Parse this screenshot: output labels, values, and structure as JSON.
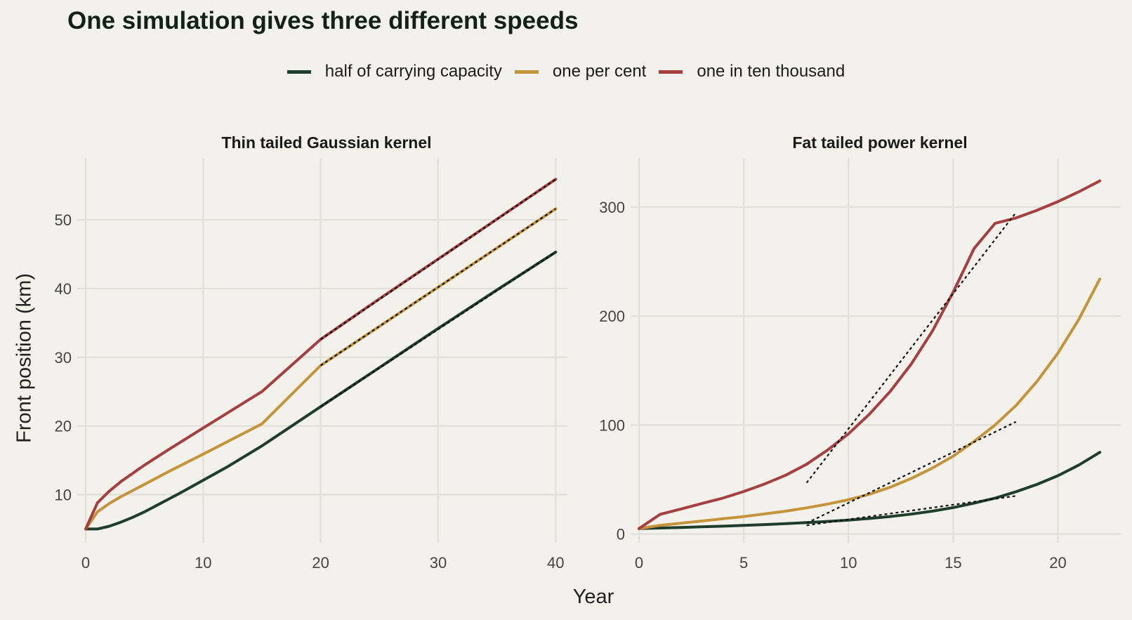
{
  "title": "One simulation gives three different speeds",
  "legend": [
    {
      "label": "half of carrying capacity",
      "color": "#1f3d2b"
    },
    {
      "label": "one per cent",
      "color": "#c5943a"
    },
    {
      "label": "one in ten thousand",
      "color": "#a63f3f"
    }
  ],
  "xlabel": "Year",
  "ylabel": "Front position (km)",
  "colors": {
    "background": "#f2f1eb",
    "grid": "#e0dfd8",
    "fit_line": "#111111"
  },
  "chart_data": [
    {
      "type": "line",
      "title": "Thin tailed Gaussian kernel",
      "xlim": [
        0,
        41
      ],
      "ylim": [
        3,
        59
      ],
      "xticks": [
        0,
        10,
        20,
        30,
        40
      ],
      "yticks": [
        10,
        20,
        30,
        40,
        50
      ],
      "grid": true,
      "series": [
        {
          "name": "half of carrying capacity",
          "color": "#1f3d2b",
          "x": [
            0,
            1,
            2,
            3,
            4,
            5,
            6,
            7,
            8,
            10,
            12,
            15,
            20,
            25,
            30,
            35,
            40
          ],
          "y": [
            5.0,
            5.0,
            5.4,
            6.0,
            6.7,
            7.5,
            8.4,
            9.3,
            10.2,
            12.1,
            14.0,
            17.1,
            22.8,
            28.5,
            34.2,
            39.8,
            45.3
          ]
        },
        {
          "name": "one per cent",
          "color": "#c5943a",
          "x": [
            0,
            1,
            2,
            3,
            5,
            7,
            10,
            15,
            20,
            25,
            30,
            35,
            40
          ],
          "y": [
            5.0,
            7.5,
            8.7,
            9.7,
            11.5,
            13.3,
            15.9,
            20.3,
            28.8,
            34.5,
            40.2,
            45.9,
            51.6
          ]
        },
        {
          "name": "one in ten thousand",
          "color": "#a63f3f",
          "x": [
            0,
            1,
            2,
            3,
            5,
            7,
            10,
            15,
            20,
            25,
            30,
            35,
            40
          ],
          "y": [
            5.0,
            8.8,
            10.5,
            11.9,
            14.3,
            16.5,
            19.7,
            25.0,
            32.6,
            38.5,
            44.3,
            50.1,
            55.9
          ]
        }
      ],
      "fits": [
        {
          "x": [
            20,
            40
          ],
          "y": [
            22.8,
            45.3
          ]
        },
        {
          "x": [
            20,
            40
          ],
          "y": [
            28.8,
            51.6
          ]
        },
        {
          "x": [
            20,
            40
          ],
          "y": [
            32.6,
            55.9
          ]
        }
      ]
    },
    {
      "type": "line",
      "title": "Fat tailed power kernel",
      "xlim": [
        0,
        23
      ],
      "ylim": [
        -8,
        345
      ],
      "xticks": [
        0,
        5,
        10,
        15,
        20
      ],
      "yticks": [
        0,
        100,
        200,
        300
      ],
      "grid": true,
      "series": [
        {
          "name": "half of carrying capacity",
          "color": "#1f3d2b",
          "x": [
            0,
            1,
            2,
            3,
            4,
            5,
            6,
            7,
            8,
            9,
            10,
            11,
            12,
            13,
            14,
            15,
            16,
            17,
            18,
            19,
            20,
            21,
            22
          ],
          "y": [
            5,
            5.5,
            6,
            6.6,
            7.2,
            7.9,
            8.7,
            9.6,
            10.5,
            11.6,
            12.8,
            14.3,
            16.1,
            18.3,
            21,
            24.3,
            28.3,
            33,
            38.8,
            45.5,
            53.5,
            63.3,
            75
          ]
        },
        {
          "name": "one per cent",
          "color": "#c5943a",
          "x": [
            0,
            1,
            2,
            3,
            4,
            5,
            6,
            7,
            8,
            9,
            10,
            11,
            12,
            13,
            14,
            15,
            16,
            17,
            18,
            19,
            20,
            21,
            22
          ],
          "y": [
            5,
            8,
            10,
            12,
            14,
            16,
            18.5,
            21,
            24,
            27.5,
            31.5,
            36.5,
            43,
            51,
            60.5,
            71.5,
            85,
            100,
            118,
            140,
            166,
            197,
            234
          ]
        },
        {
          "name": "one in ten thousand",
          "color": "#a63f3f",
          "x": [
            0,
            1,
            2,
            3,
            4,
            5,
            6,
            7,
            8,
            9,
            10,
            11,
            12,
            13,
            14,
            15,
            16,
            17,
            18,
            19,
            20,
            21,
            22
          ],
          "y": [
            5,
            18,
            23,
            28,
            33,
            39,
            46,
            54,
            64,
            77,
            92,
            110,
            131,
            156,
            186,
            222,
            262,
            285,
            290,
            297,
            305,
            314,
            324
          ]
        }
      ],
      "fits": [
        {
          "x": [
            8,
            18
          ],
          "y": [
            8,
            35
          ]
        },
        {
          "x": [
            8,
            18
          ],
          "y": [
            10,
            103
          ]
        },
        {
          "x": [
            8,
            18
          ],
          "y": [
            47,
            295
          ]
        }
      ]
    }
  ]
}
